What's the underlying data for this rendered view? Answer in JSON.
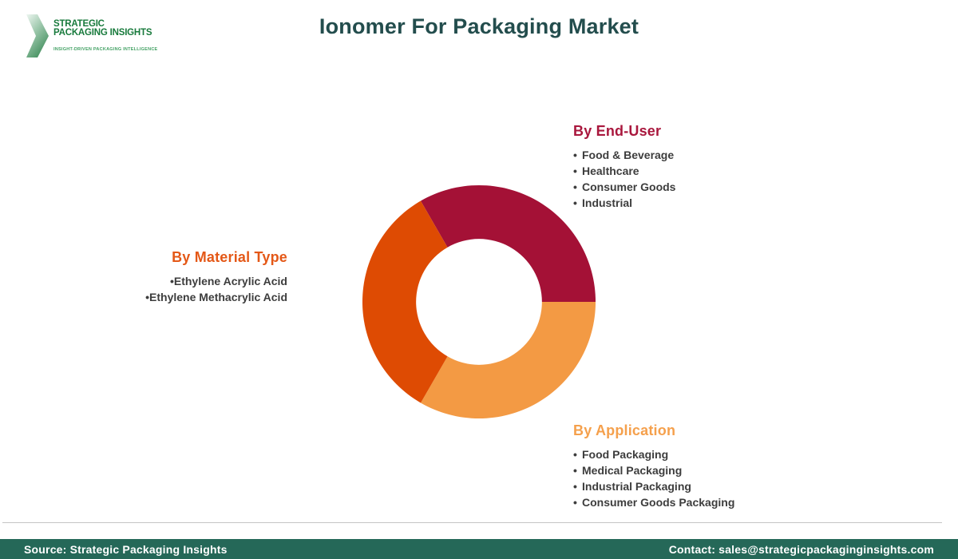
{
  "header": {
    "logo": {
      "line1": "STRATEGIC",
      "line2": "PACKAGING INSIGHTS",
      "tagline": "INSIGHT-DRIVEN PACKAGING INTELLIGENCE",
      "text_color": "#187A3C",
      "tagline_color": "#43A164"
    },
    "title": "Ionomer For Packaging Market",
    "title_color": "#234D4D"
  },
  "chart_data": {
    "type": "pie",
    "subtype": "donut",
    "title": "Ionomer For Packaging Market",
    "start_angle_deg": -30,
    "inner_radius_ratio": 0.54,
    "segments": [
      {
        "id": "end-user",
        "label": "By End-User",
        "value": 33.33,
        "color": "#A41136"
      },
      {
        "id": "application",
        "label": "By Application",
        "value": 33.33,
        "color": "#F39A44"
      },
      {
        "id": "material-type",
        "label": "By Material Type",
        "value": 33.33,
        "color": "#DE4B03"
      }
    ]
  },
  "sections": {
    "end_user": {
      "heading": "By End-User",
      "heading_color": "#A9173D",
      "items": [
        "Food & Beverage",
        "Healthcare",
        "Consumer Goods",
        "Industrial"
      ]
    },
    "material_type": {
      "heading": "By Material Type",
      "heading_color": "#E45817",
      "items": [
        "Ethylene Acrylic Acid",
        "Ethylene Methacrylic Acid"
      ]
    },
    "application": {
      "heading": "By Application",
      "heading_color": "#F5A04C",
      "items": [
        "Food Packaging",
        "Medical Packaging",
        "Industrial Packaging",
        "Consumer Goods Packaging"
      ]
    }
  },
  "footer": {
    "source": "Source: Strategic Packaging Insights",
    "contact": "Contact: sales@strategicpackaginginsights.com",
    "background": "#256858"
  }
}
